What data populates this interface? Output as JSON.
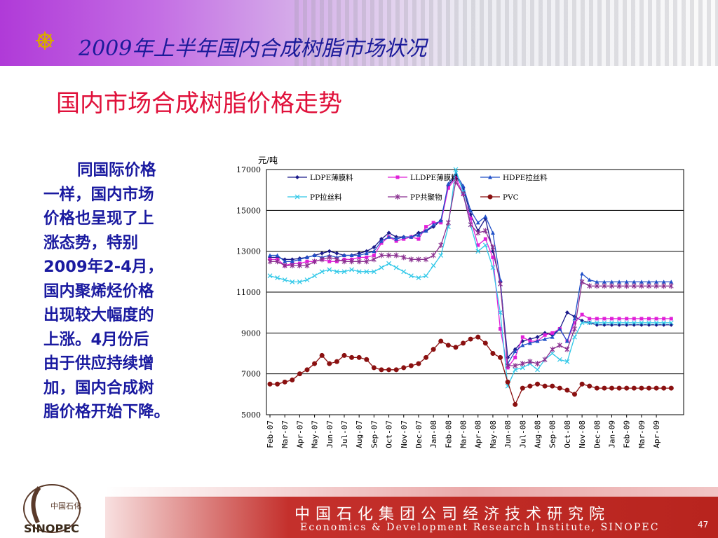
{
  "header": {
    "title": "2009年上半年国内合成树脂市场状况",
    "icon": "dharma-wheel-icon"
  },
  "subtitle": "国内市场合成树脂价格走势",
  "body_text": {
    "lines": [
      "同国际价格",
      "一样，国内市场",
      "价格也呈现了上",
      "涨态势，特别",
      "2009年2-4月，",
      "国内聚烯烃价格",
      "出现较大幅度的",
      "上涨。4月份后",
      "由于供应持续增",
      "加，国内合成树",
      "脂价格开始下降。"
    ]
  },
  "footer": {
    "cn": "中国石化集团公司经济技术研究院",
    "en": "Economics & Development Research Institute, SINOPEC",
    "page_number": "47",
    "logo_cn": "中国石化",
    "logo_en": "SINOPEC"
  },
  "colors": {
    "LDPE薄膜料": "#1a1a8a",
    "LLDPE薄膜料": "#e020d8",
    "HDPE拉丝料": "#2050c8",
    "PP拉丝料": "#30c8e8",
    "PP共聚物": "#8a3090",
    "PVC": "#8a1010"
  },
  "chart_data": {
    "type": "line",
    "ylabel": "元/吨",
    "ylim": [
      5000,
      17000
    ],
    "yticks": [
      5000,
      7000,
      9000,
      11000,
      13000,
      15000,
      17000
    ],
    "x_labels": [
      "Feb-07",
      "Mar-07",
      "Apr-07",
      "May-07",
      "Jun-07",
      "Jul-07",
      "Aug-07",
      "Sep-07",
      "Oct-07",
      "Nov-07",
      "Dec-07",
      "Jan-08",
      "Feb-08",
      "Mar-08",
      "Apr-08",
      "May-08",
      "Jun-08",
      "Jul-08",
      "Aug-08",
      "Sep-08",
      "Oct-08",
      "Nov-08",
      "Dec-08",
      "Jan-09",
      "Feb-09",
      "Mar-09",
      "Apr-09"
    ],
    "x": [
      0,
      0.5,
      1,
      1.5,
      2,
      2.5,
      3,
      3.5,
      4,
      4.5,
      5,
      5.5,
      6,
      6.5,
      7,
      7.5,
      8,
      8.5,
      9,
      9.5,
      10,
      10.5,
      11,
      11.5,
      12,
      12.5,
      13,
      13.5,
      14,
      14.5,
      15,
      15.5,
      16,
      16.5,
      17,
      17.5,
      18,
      18.5,
      19,
      19.5,
      20,
      20.5,
      21,
      21.5,
      22,
      22.5,
      23,
      23.5,
      24,
      24.5,
      25,
      25.5,
      26,
      26.5,
      27
    ],
    "legend_placement": "top",
    "grid": "horizontal",
    "series": [
      {
        "name": "LDPE薄膜料",
        "values": [
          12700,
          12700,
          12600,
          12600,
          12650,
          12700,
          12800,
          12900,
          13000,
          12900,
          12800,
          12800,
          12900,
          13000,
          13200,
          13600,
          13900,
          13700,
          13700,
          13700,
          13900,
          14000,
          14200,
          14500,
          16200,
          16700,
          16100,
          14800,
          14000,
          14600,
          13000,
          11500,
          7800,
          8200,
          8600,
          8700,
          8800,
          9000,
          8900,
          9200,
          10000,
          9800,
          9600,
          9500,
          9400,
          9400,
          9400,
          9400,
          9400,
          9400,
          9400,
          9400,
          9400,
          9400,
          9400
        ]
      },
      {
        "name": "LLDPE薄膜料",
        "values": [
          12600,
          12600,
          12300,
          12400,
          12400,
          12500,
          12500,
          12600,
          12500,
          12500,
          12600,
          12600,
          12700,
          12700,
          12800,
          13400,
          13700,
          13500,
          13600,
          13700,
          13600,
          14200,
          14400,
          14400,
          16100,
          16600,
          15800,
          14600,
          13300,
          13600,
          12700,
          9200,
          7300,
          7800,
          8800,
          8600,
          8600,
          8900,
          9000,
          9200,
          8600,
          9500,
          9900,
          9700,
          9700,
          9700,
          9700,
          9700,
          9700,
          9700,
          9700,
          9700,
          9700,
          9700,
          9700
        ]
      },
      {
        "name": "HDPE拉丝料",
        "values": [
          12800,
          12800,
          12500,
          12500,
          12600,
          12700,
          12800,
          12700,
          12800,
          12700,
          12800,
          12800,
          12800,
          12900,
          13000,
          13500,
          13700,
          13600,
          13700,
          13700,
          13800,
          14000,
          14300,
          14500,
          16300,
          16800,
          16200,
          15000,
          14400,
          14700,
          13900,
          11600,
          7500,
          8100,
          8400,
          8500,
          8600,
          8700,
          8800,
          9200,
          8600,
          9700,
          11900,
          11600,
          11500,
          11500,
          11500,
          11500,
          11500,
          11500,
          11500,
          11500,
          11500,
          11500,
          11500
        ]
      },
      {
        "name": "PP拉丝料",
        "values": [
          11800,
          11700,
          11600,
          11500,
          11500,
          11600,
          11800,
          12000,
          12100,
          12000,
          12000,
          12100,
          12000,
          12000,
          12000,
          12200,
          12400,
          12200,
          12000,
          11800,
          11700,
          11800,
          12300,
          12800,
          14200,
          17000,
          15900,
          14300,
          13000,
          13300,
          12200,
          10000,
          6400,
          7200,
          7300,
          7500,
          7200,
          7700,
          8000,
          7700,
          7600,
          8800,
          9500,
          9500,
          9500,
          9500,
          9500,
          9500,
          9500,
          9500,
          9500,
          9500,
          9500,
          9500,
          9500
        ]
      },
      {
        "name": "PP共聚物",
        "values": [
          12500,
          12500,
          12300,
          12300,
          12300,
          12300,
          12500,
          12600,
          12700,
          12600,
          12500,
          12500,
          12500,
          12500,
          12600,
          12800,
          12800,
          12800,
          12700,
          12600,
          12600,
          12600,
          12800,
          13300,
          14400,
          16400,
          15800,
          14300,
          13900,
          14000,
          13200,
          11400,
          7400,
          7400,
          7500,
          7600,
          7500,
          7700,
          8200,
          8400,
          8200,
          9200,
          11500,
          11300,
          11300,
          11300,
          11300,
          11300,
          11300,
          11300,
          11300,
          11300,
          11300,
          11300,
          11300
        ]
      },
      {
        "name": "PVC",
        "values": [
          6500,
          6500,
          6600,
          6700,
          7000,
          7200,
          7500,
          7900,
          7500,
          7600,
          7900,
          7800,
          7800,
          7700,
          7300,
          7200,
          7200,
          7200,
          7300,
          7400,
          7500,
          7800,
          8200,
          8600,
          8400,
          8300,
          8500,
          8700,
          8800,
          8500,
          8000,
          7800,
          6600,
          5500,
          6300,
          6400,
          6500,
          6400,
          6400,
          6300,
          6200,
          6000,
          6500,
          6400,
          6300,
          6300,
          6300,
          6300,
          6300,
          6300,
          6300,
          6300,
          6300,
          6300,
          6300
        ]
      }
    ]
  }
}
